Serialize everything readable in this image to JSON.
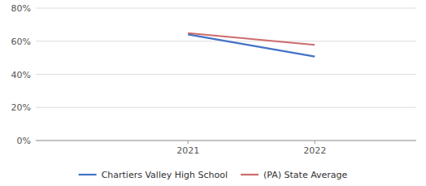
{
  "chart_data": {
    "type": "line",
    "x": [
      2021,
      2022
    ],
    "series": [
      {
        "name": "Chartiers Valley High School",
        "color": "#4472C4",
        "values": [
          0.641,
          0.507
        ]
      },
      {
        "name": "(PA) State Average",
        "color": "#CD6B6B",
        "values": [
          0.649,
          0.578
        ]
      }
    ],
    "xlim": [
      2019.8,
      2022.8
    ],
    "xticks": [
      2021,
      2022
    ],
    "ylim": [
      0,
      0.8
    ],
    "yticks": [
      {
        "value": 0.0,
        "label": "0%"
      },
      {
        "value": 0.2,
        "label": "20%"
      },
      {
        "value": 0.4,
        "label": "40%"
      },
      {
        "value": 0.6,
        "label": "60%"
      },
      {
        "value": 0.8,
        "label": "80%"
      }
    ],
    "grid": true,
    "legend": "bottom"
  }
}
